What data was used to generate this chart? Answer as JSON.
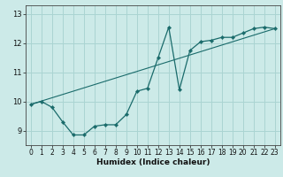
{
  "xlabel": "Humidex (Indice chaleur)",
  "bg_color": "#cceae8",
  "grid_color": "#aad4d2",
  "line_color": "#1a6b6b",
  "xlim": [
    -0.5,
    23.5
  ],
  "ylim": [
    8.5,
    13.3
  ],
  "yticks": [
    9,
    10,
    11,
    12,
    13
  ],
  "xticks": [
    0,
    1,
    2,
    3,
    4,
    5,
    6,
    7,
    8,
    9,
    10,
    11,
    12,
    13,
    14,
    15,
    16,
    17,
    18,
    19,
    20,
    21,
    22,
    23
  ],
  "series1_x": [
    0,
    1,
    2,
    3,
    4,
    5,
    6,
    7,
    8,
    9,
    10,
    11,
    12,
    13,
    14,
    15,
    16,
    17,
    18,
    19,
    20,
    21,
    22,
    23
  ],
  "series1_y": [
    9.9,
    10.0,
    9.8,
    9.3,
    8.85,
    8.85,
    9.15,
    9.2,
    9.2,
    9.55,
    10.35,
    10.45,
    11.5,
    12.55,
    10.4,
    11.75,
    12.05,
    12.1,
    12.2,
    12.2,
    12.35,
    12.5,
    12.55,
    12.5
  ],
  "series2_x": [
    0,
    23
  ],
  "series2_y": [
    9.9,
    12.5
  ]
}
